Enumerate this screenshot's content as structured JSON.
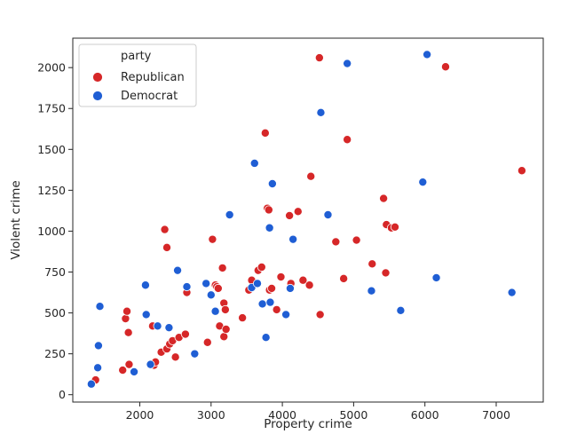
{
  "chart_data": {
    "type": "scatter",
    "title": "",
    "xlabel": "Property crime",
    "ylabel": "Violent crime",
    "xlim": [
      1060,
      7660
    ],
    "ylim": [
      -45,
      2180
    ],
    "xticks": [
      2000,
      3000,
      4000,
      5000,
      6000,
      7000
    ],
    "yticks": [
      0,
      250,
      500,
      750,
      1000,
      1250,
      1500,
      1750,
      2000
    ],
    "grid": false,
    "legend": {
      "title": "party",
      "placement": "top-left"
    },
    "series": [
      {
        "name": "Republican",
        "color": "#d62728",
        "x": [
          1380,
          1760,
          1800,
          1820,
          1840,
          1850,
          2180,
          2200,
          2220,
          2300,
          2350,
          2380,
          2380,
          2420,
          2460,
          2500,
          2550,
          2640,
          2660,
          2950,
          3020,
          3060,
          3080,
          3100,
          3120,
          3160,
          3180,
          3180,
          3200,
          3210,
          3440,
          3530,
          3570,
          3660,
          3710,
          3760,
          3790,
          3810,
          3820,
          3850,
          3920,
          3980,
          4100,
          4120,
          4220,
          4290,
          4380,
          4400,
          4520,
          4530,
          4750,
          4860,
          4910,
          5040,
          5260,
          5420,
          5450,
          5460,
          5530,
          5580,
          6290,
          7360
        ],
        "y": [
          90,
          150,
          465,
          510,
          380,
          185,
          420,
          180,
          200,
          260,
          1010,
          900,
          280,
          310,
          330,
          230,
          350,
          370,
          625,
          320,
          950,
          670,
          660,
          650,
          420,
          775,
          355,
          560,
          520,
          400,
          470,
          640,
          700,
          760,
          780,
          1600,
          1140,
          1130,
          640,
          650,
          520,
          720,
          1095,
          680,
          1120,
          700,
          670,
          1335,
          2060,
          490,
          935,
          710,
          1560,
          945,
          800,
          1200,
          745,
          1040,
          1020,
          1025,
          2005,
          1370
        ]
      },
      {
        "name": "Democrat",
        "color": "#1f5ed4",
        "x": [
          1320,
          1410,
          1420,
          1440,
          1920,
          2080,
          2090,
          2150,
          2250,
          2410,
          2530,
          2660,
          2770,
          2930,
          3000,
          3060,
          3260,
          3570,
          3610,
          3650,
          3720,
          3770,
          3820,
          3830,
          3860,
          4050,
          4110,
          4150,
          4540,
          4640,
          4910,
          5250,
          5660,
          5970,
          6030,
          6160,
          7220
        ],
        "y": [
          65,
          165,
          300,
          540,
          140,
          670,
          490,
          185,
          420,
          410,
          760,
          660,
          250,
          680,
          610,
          510,
          1100,
          655,
          1415,
          680,
          555,
          350,
          1020,
          565,
          1290,
          490,
          650,
          950,
          1725,
          1100,
          2025,
          635,
          515,
          1300,
          2080,
          715,
          625
        ]
      }
    ]
  }
}
